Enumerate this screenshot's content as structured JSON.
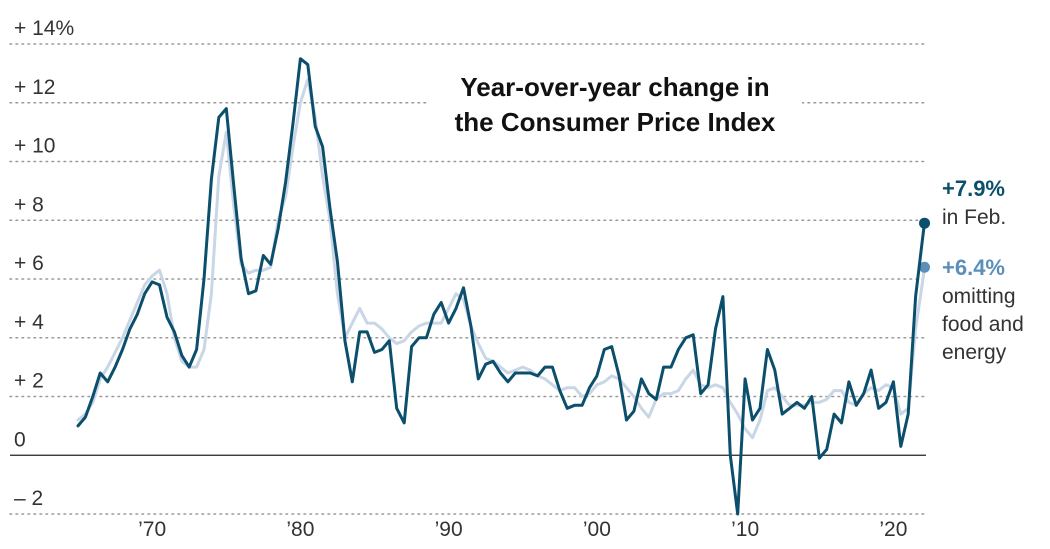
{
  "chart_data": {
    "type": "line",
    "title_lines": [
      "Year-over-year change in",
      "the Consumer Price Index"
    ],
    "xlabel": "",
    "ylabel": "",
    "y_ticks": [
      {
        "value": 14,
        "label": "+ 14%"
      },
      {
        "value": 12,
        "label": "+ 12"
      },
      {
        "value": 10,
        "label": "+ 10"
      },
      {
        "value": 8,
        "label": "+   8"
      },
      {
        "value": 6,
        "label": "+   6"
      },
      {
        "value": 4,
        "label": "+   4"
      },
      {
        "value": 2,
        "label": "+   2"
      },
      {
        "value": 0,
        "label": "0"
      },
      {
        "value": -2,
        "label": "–   2"
      }
    ],
    "x_ticks": [
      {
        "value": 1970,
        "label": "’70"
      },
      {
        "value": 1980,
        "label": "’80"
      },
      {
        "value": 1990,
        "label": "’90"
      },
      {
        "value": 2000,
        "label": "’00"
      },
      {
        "value": 2010,
        "label": "’10"
      },
      {
        "value": 2020,
        "label": "’20"
      }
    ],
    "xlim": [
      1965,
      2022.2
    ],
    "ylim": [
      -2,
      14
    ],
    "grid": "horizontal dotted",
    "series": [
      {
        "name": "",
        "color": "#0b4f6c",
        "end_label": {
          "value": "+7.9%",
          "text": [
            "in Feb."
          ]
        },
        "points": [
          [
            1965,
            1.0
          ],
          [
            1965.5,
            1.3
          ],
          [
            1966,
            2.0
          ],
          [
            1966.5,
            2.8
          ],
          [
            1967,
            2.5
          ],
          [
            1967.5,
            3.0
          ],
          [
            1968,
            3.6
          ],
          [
            1968.5,
            4.3
          ],
          [
            1969,
            4.8
          ],
          [
            1969.5,
            5.5
          ],
          [
            1970,
            5.9
          ],
          [
            1970.5,
            5.8
          ],
          [
            1971,
            4.7
          ],
          [
            1971.5,
            4.2
          ],
          [
            1972,
            3.4
          ],
          [
            1972.5,
            3.0
          ],
          [
            1973,
            3.6
          ],
          [
            1973.5,
            6.0
          ],
          [
            1974,
            9.4
          ],
          [
            1974.5,
            11.5
          ],
          [
            1975,
            11.8
          ],
          [
            1975.5,
            9.2
          ],
          [
            1976,
            6.7
          ],
          [
            1976.5,
            5.5
          ],
          [
            1977,
            5.6
          ],
          [
            1977.5,
            6.8
          ],
          [
            1978,
            6.5
          ],
          [
            1978.5,
            7.7
          ],
          [
            1979,
            9.3
          ],
          [
            1979.5,
            11.3
          ],
          [
            1980,
            13.5
          ],
          [
            1980.5,
            13.3
          ],
          [
            1981,
            11.2
          ],
          [
            1981.5,
            10.5
          ],
          [
            1982,
            8.4
          ],
          [
            1982.5,
            6.6
          ],
          [
            1983,
            3.9
          ],
          [
            1983.5,
            2.5
          ],
          [
            1984,
            4.2
          ],
          [
            1984.5,
            4.2
          ],
          [
            1985,
            3.5
          ],
          [
            1985.5,
            3.6
          ],
          [
            1986,
            3.9
          ],
          [
            1986.5,
            1.6
          ],
          [
            1987,
            1.1
          ],
          [
            1987.5,
            3.7
          ],
          [
            1988,
            4.0
          ],
          [
            1988.5,
            4.0
          ],
          [
            1989,
            4.8
          ],
          [
            1989.5,
            5.2
          ],
          [
            1990,
            4.5
          ],
          [
            1990.5,
            5.0
          ],
          [
            1991,
            5.7
          ],
          [
            1991.5,
            4.4
          ],
          [
            1992,
            2.6
          ],
          [
            1992.5,
            3.1
          ],
          [
            1993,
            3.2
          ],
          [
            1993.5,
            2.8
          ],
          [
            1994,
            2.5
          ],
          [
            1994.5,
            2.8
          ],
          [
            1995,
            2.8
          ],
          [
            1995.5,
            2.8
          ],
          [
            1996,
            2.7
          ],
          [
            1996.5,
            3.0
          ],
          [
            1997,
            3.0
          ],
          [
            1997.5,
            2.2
          ],
          [
            1998,
            1.6
          ],
          [
            1998.5,
            1.7
          ],
          [
            1999,
            1.7
          ],
          [
            1999.5,
            2.3
          ],
          [
            2000,
            2.7
          ],
          [
            2000.5,
            3.6
          ],
          [
            2001,
            3.7
          ],
          [
            2001.5,
            2.7
          ],
          [
            2002,
            1.2
          ],
          [
            2002.5,
            1.5
          ],
          [
            2003,
            2.6
          ],
          [
            2003.5,
            2.1
          ],
          [
            2004,
            1.9
          ],
          [
            2004.5,
            3.0
          ],
          [
            2005,
            3.0
          ],
          [
            2005.5,
            3.6
          ],
          [
            2006,
            4.0
          ],
          [
            2006.5,
            4.1
          ],
          [
            2007,
            2.1
          ],
          [
            2007.5,
            2.4
          ],
          [
            2008,
            4.3
          ],
          [
            2008.5,
            5.4
          ],
          [
            2009,
            0.0
          ],
          [
            2009.5,
            -2.0
          ],
          [
            2010,
            2.6
          ],
          [
            2010.5,
            1.2
          ],
          [
            2011,
            1.6
          ],
          [
            2011.5,
            3.6
          ],
          [
            2012,
            2.9
          ],
          [
            2012.5,
            1.4
          ],
          [
            2013,
            1.6
          ],
          [
            2013.5,
            1.8
          ],
          [
            2014,
            1.6
          ],
          [
            2014.5,
            2.0
          ],
          [
            2015,
            -0.1
          ],
          [
            2015.5,
            0.2
          ],
          [
            2016,
            1.4
          ],
          [
            2016.5,
            1.1
          ],
          [
            2017,
            2.5
          ],
          [
            2017.5,
            1.7
          ],
          [
            2018,
            2.1
          ],
          [
            2018.5,
            2.9
          ],
          [
            2019,
            1.6
          ],
          [
            2019.5,
            1.8
          ],
          [
            2020,
            2.5
          ],
          [
            2020.5,
            0.3
          ],
          [
            2021,
            1.4
          ],
          [
            2021.5,
            5.4
          ],
          [
            2022,
            7.5
          ],
          [
            2022.1,
            7.9
          ]
        ]
      },
      {
        "name": "",
        "color": "#c8d6e6",
        "end_color": "#5b8fb9",
        "end_label": {
          "value": "+6.4%",
          "text": [
            "omitting",
            "food and",
            "energy"
          ]
        },
        "points": [
          [
            1965,
            1.2
          ],
          [
            1965.5,
            1.4
          ],
          [
            1966,
            1.8
          ],
          [
            1966.5,
            2.6
          ],
          [
            1967,
            3.0
          ],
          [
            1967.5,
            3.5
          ],
          [
            1968,
            4.0
          ],
          [
            1968.5,
            4.6
          ],
          [
            1969,
            5.2
          ],
          [
            1969.5,
            5.8
          ],
          [
            1970,
            6.1
          ],
          [
            1970.5,
            6.3
          ],
          [
            1971,
            5.5
          ],
          [
            1971.5,
            4.0
          ],
          [
            1972,
            3.2
          ],
          [
            1972.5,
            3.0
          ],
          [
            1973,
            3.0
          ],
          [
            1973.5,
            3.6
          ],
          [
            1974,
            5.5
          ],
          [
            1974.5,
            9.5
          ],
          [
            1975,
            11.0
          ],
          [
            1975.5,
            8.5
          ],
          [
            1976,
            6.5
          ],
          [
            1976.5,
            6.2
          ],
          [
            1977,
            6.3
          ],
          [
            1977.5,
            6.3
          ],
          [
            1978,
            6.4
          ],
          [
            1978.5,
            8.0
          ],
          [
            1979,
            8.8
          ],
          [
            1979.5,
            10.5
          ],
          [
            1980,
            12.0
          ],
          [
            1980.5,
            12.8
          ],
          [
            1981,
            11.5
          ],
          [
            1981.5,
            9.5
          ],
          [
            1982,
            8.0
          ],
          [
            1982.5,
            5.5
          ],
          [
            1983,
            4.0
          ],
          [
            1983.5,
            4.5
          ],
          [
            1984,
            5.0
          ],
          [
            1984.5,
            4.5
          ],
          [
            1985,
            4.5
          ],
          [
            1985.5,
            4.3
          ],
          [
            1986,
            4.0
          ],
          [
            1986.5,
            3.8
          ],
          [
            1987,
            3.9
          ],
          [
            1987.5,
            4.2
          ],
          [
            1988,
            4.4
          ],
          [
            1988.5,
            4.5
          ],
          [
            1989,
            4.5
          ],
          [
            1989.5,
            4.5
          ],
          [
            1990,
            5.0
          ],
          [
            1990.5,
            5.5
          ],
          [
            1991,
            5.3
          ],
          [
            1991.5,
            4.4
          ],
          [
            1992,
            3.8
          ],
          [
            1992.5,
            3.3
          ],
          [
            1993,
            3.2
          ],
          [
            1993.5,
            3.0
          ],
          [
            1994,
            2.8
          ],
          [
            1994.5,
            2.9
          ],
          [
            1995,
            3.0
          ],
          [
            1995.5,
            2.9
          ],
          [
            1996,
            2.7
          ],
          [
            1996.5,
            2.6
          ],
          [
            1997,
            2.4
          ],
          [
            1997.5,
            2.2
          ],
          [
            1998,
            2.3
          ],
          [
            1998.5,
            2.3
          ],
          [
            1999,
            2.0
          ],
          [
            1999.5,
            2.1
          ],
          [
            2000,
            2.4
          ],
          [
            2000.5,
            2.5
          ],
          [
            2001,
            2.7
          ],
          [
            2001.5,
            2.6
          ],
          [
            2002,
            2.3
          ],
          [
            2002.5,
            2.0
          ],
          [
            2003,
            1.6
          ],
          [
            2003.5,
            1.3
          ],
          [
            2004,
            1.9
          ],
          [
            2004.5,
            2.1
          ],
          [
            2005,
            2.1
          ],
          [
            2005.5,
            2.2
          ],
          [
            2006,
            2.6
          ],
          [
            2006.5,
            2.9
          ],
          [
            2007,
            2.4
          ],
          [
            2007.5,
            2.3
          ],
          [
            2008,
            2.4
          ],
          [
            2008.5,
            2.3
          ],
          [
            2009,
            1.8
          ],
          [
            2009.5,
            1.4
          ],
          [
            2010,
            0.9
          ],
          [
            2010.5,
            0.6
          ],
          [
            2011,
            1.2
          ],
          [
            2011.5,
            2.2
          ],
          [
            2012,
            2.3
          ],
          [
            2012.5,
            2.0
          ],
          [
            2013,
            1.7
          ],
          [
            2013.5,
            1.7
          ],
          [
            2014,
            1.7
          ],
          [
            2014.5,
            1.8
          ],
          [
            2015,
            1.8
          ],
          [
            2015.5,
            1.9
          ],
          [
            2016,
            2.2
          ],
          [
            2016.5,
            2.2
          ],
          [
            2017,
            1.8
          ],
          [
            2017.5,
            1.7
          ],
          [
            2018,
            2.1
          ],
          [
            2018.5,
            2.3
          ],
          [
            2019,
            2.2
          ],
          [
            2019.5,
            2.4
          ],
          [
            2020,
            2.3
          ],
          [
            2020.5,
            1.4
          ],
          [
            2021,
            1.6
          ],
          [
            2021.5,
            4.3
          ],
          [
            2022,
            6.0
          ],
          [
            2022.1,
            6.4
          ]
        ]
      }
    ]
  }
}
